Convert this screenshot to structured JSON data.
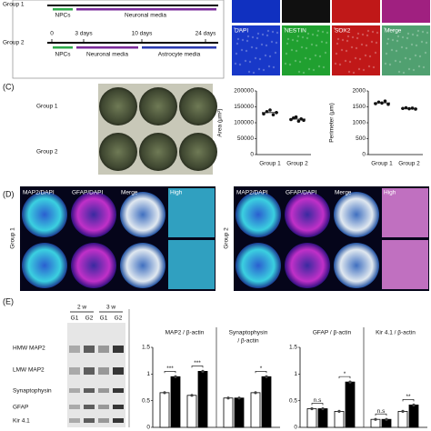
{
  "top": {
    "groups": [
      {
        "label": "Group 1",
        "stages": [
          "NPCs",
          "Neuronal media"
        ]
      },
      {
        "label": "Group 2",
        "days": [
          "0",
          "3 days",
          "10 days",
          "24 days"
        ],
        "stages": [
          "NPCs",
          "Neuronal media",
          "Astrocyte media"
        ]
      }
    ],
    "stain_labels": [
      "DAPI",
      "NESTIN",
      "SOX2",
      "Merge"
    ]
  },
  "panel_c": {
    "label": "(C)",
    "rows": [
      "Group 1",
      "Group 2"
    ],
    "charts": [
      {
        "ylabel": "Area (μm²)",
        "categories": [
          "Group 1",
          "Group 2"
        ],
        "points": [
          [
            128000,
            135000,
            140000,
            125000,
            132000
          ],
          [
            110000,
            115000,
            118000,
            105000,
            112000,
            108000
          ]
        ],
        "ylim": [
          0,
          200000
        ],
        "yticks": [
          0,
          50000,
          100000,
          150000,
          200000
        ]
      },
      {
        "ylabel": "Perimeter (μm)",
        "categories": [
          "Group 1",
          "Group 2"
        ],
        "points": [
          [
            1600,
            1650,
            1620,
            1680,
            1580
          ],
          [
            1450,
            1470,
            1440,
            1460,
            1430
          ]
        ],
        "ylim": [
          0,
          2000
        ],
        "yticks": [
          0,
          500,
          1000,
          1500,
          2000
        ]
      }
    ]
  },
  "panel_d": {
    "label": "(D)",
    "stains": [
      "MAP2/DAPI",
      "GFAP/DAPI",
      "Merge",
      "High"
    ],
    "groups": [
      "Group 1",
      "Group 2"
    ]
  },
  "panel_e": {
    "label": "(E)",
    "blot": {
      "weeks": [
        "2 w",
        "3 w"
      ],
      "lanes": [
        "G1",
        "G2",
        "G1",
        "G2"
      ],
      "rows": [
        "HMW MAP2",
        "LMW MAP2",
        "Synaptophysin",
        "GFAP",
        "Kir 4.1"
      ]
    },
    "charts": [
      {
        "ylim": [
          0,
          1.5
        ],
        "yticks": [
          0,
          0.5,
          1,
          1.5
        ],
        "colors": [
          "#ffffff",
          "#000000"
        ],
        "panels": [
          {
            "title": [
              "MAP2 / β-actin"
            ],
            "values": [
              0.65,
              0.95,
              0.6,
              1.05
            ],
            "sig": [
              "***",
              "***"
            ]
          },
          {
            "title": [
              "Synaptophysin",
              "/ β-actin"
            ],
            "values": [
              0.55,
              0.55,
              0.65,
              0.95
            ],
            "sig": [
              null,
              "*"
            ]
          }
        ]
      },
      {
        "ylim": [
          0,
          1.5
        ],
        "yticks": [
          0,
          0.5,
          1,
          1.5
        ],
        "colors": [
          "#ffffff",
          "#000000"
        ],
        "panels": [
          {
            "title": [
              "GFAP / β-actin"
            ],
            "values": [
              0.35,
              0.35,
              0.3,
              0.85
            ],
            "sig": [
              "n.s",
              "*"
            ]
          },
          {
            "title": [
              "Kir 4.1 / β-actin"
            ],
            "values": [
              0.15,
              0.15,
              0.3,
              0.42
            ],
            "sig": [
              "n.s",
              "**"
            ]
          }
        ]
      }
    ]
  }
}
